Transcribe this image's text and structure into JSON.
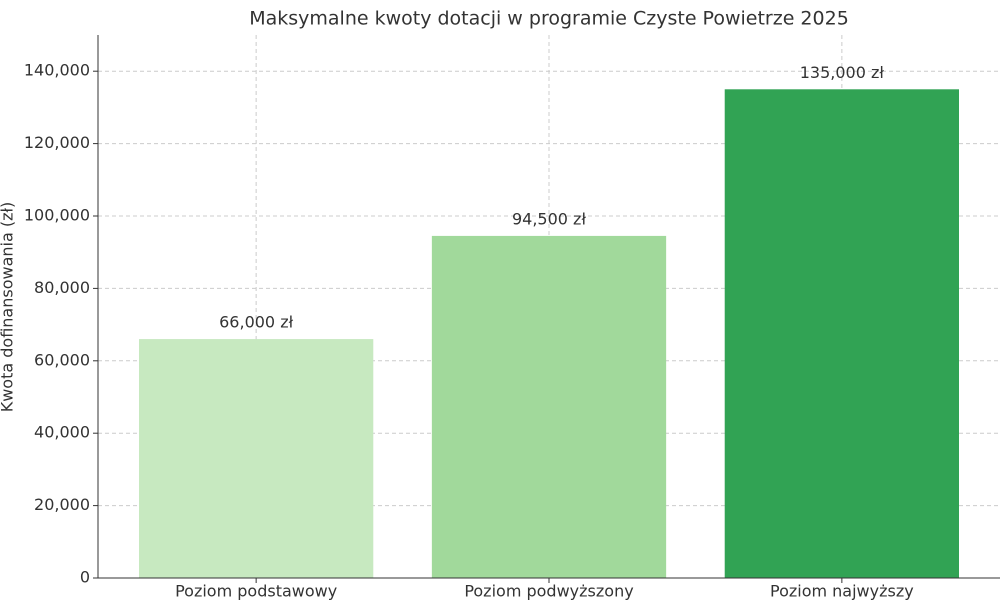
{
  "chart_data": {
    "type": "bar",
    "title": "Maksymalne kwoty dotacji w programie Czyste Powietrze 2025",
    "y_label": "Kwota dofinansowania (zł)",
    "categories": [
      "Poziom podstawowy",
      "Poziom podwyższony",
      "Poziom najwyższy"
    ],
    "values": [
      66000,
      94500,
      135000
    ],
    "value_labels": [
      "66,000 zł",
      "94,500 zł",
      "135,000 zł"
    ],
    "colors": [
      "#c7e9c0",
      "#a1d99b",
      "#31a354"
    ],
    "ylim": [
      0,
      150000
    ],
    "yticks": [
      0,
      {
        "value": 20000,
        "label": "20,000"
      },
      {
        "value": 40000,
        "label": "40,000"
      },
      {
        "value": 60000,
        "label": "60,000"
      },
      {
        "value": 80000,
        "label": "80,000"
      },
      {
        "value": 100000,
        "label": "100,000"
      },
      {
        "value": 120000,
        "label": "120,000"
      },
      {
        "value": 140000,
        "label": "140,000"
      }
    ],
    "grid": true
  }
}
